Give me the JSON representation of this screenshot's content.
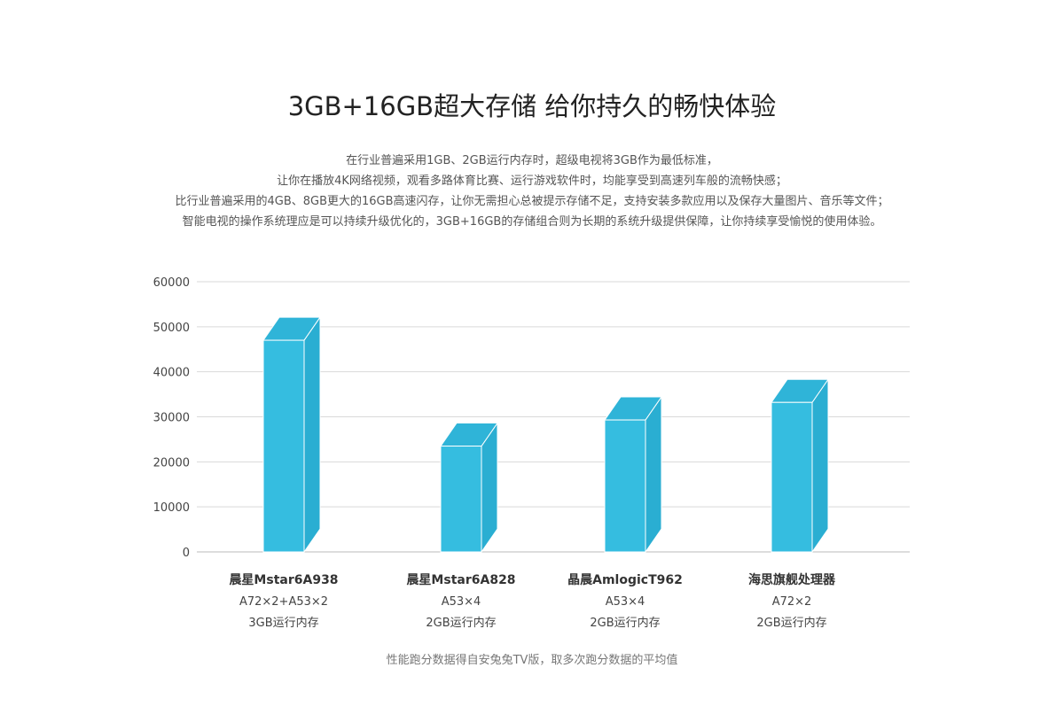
{
  "title": "3GB+16GB超大存储 给你持久的畅快体验",
  "description": [
    "在行业普遍采用1GB、2GB运行内存时，超级电视将3GB作为最低标准，",
    "让你在播放4K网络视频，观看多路体育比赛、运行游戏软件时，均能享受到高速列车般的流畅快感；",
    "比行业普遍采用的4GB、8GB更大的16GB高速闪存，让你无需担心总被提示存储不足，支持安装多款应用以及保存大量图片、音乐等文件；",
    "智能电视的操作系统理应是可以持续升级优化的，3GB+16GB的存储组合则为长期的系统升级提供保障，让你持续享受愉悦的使用体验。"
  ],
  "footnote": "性能跑分数据得自安兔兔TV版，取多次跑分数据的平均值",
  "colors": {
    "bar_front": "#35bde0",
    "bar_top": "#2fb4d8",
    "bar_side": "#2aaed2",
    "bar_edge": "#ffffff",
    "grid": "#d9d9d9",
    "axis": "#bbbbbb"
  },
  "chart_data": {
    "type": "bar",
    "categories": [
      [
        "晨星Mstar6A938",
        "A72×2+A53×2",
        "3GB运行内存"
      ],
      [
        "晨星Mstar6A828",
        "A53×4",
        "2GB运行内存"
      ],
      [
        "晶晨AmlogicT962",
        "A53×4",
        "2GB运行内存"
      ],
      [
        "海思旗舰处理器",
        "A72×2",
        "2GB运行内存"
      ]
    ],
    "values": [
      47000,
      23500,
      29300,
      33200
    ],
    "yticks": [
      "0",
      "10000",
      "20000",
      "30000",
      "40000",
      "50000",
      "60000"
    ],
    "ylim": [
      0,
      60000
    ],
    "grid": true,
    "style": "3d"
  }
}
